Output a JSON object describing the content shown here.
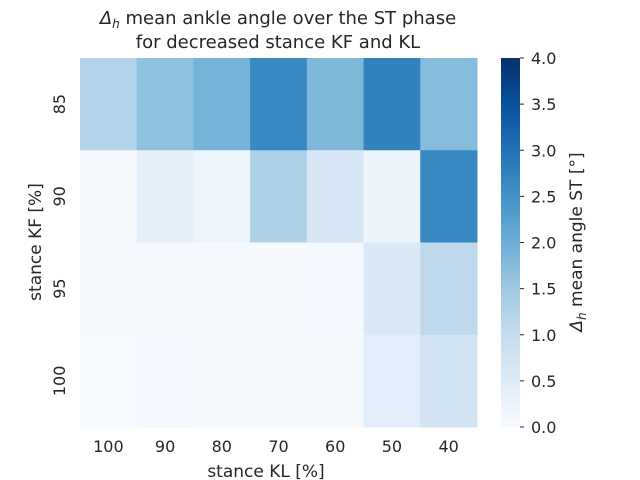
{
  "chart_data": {
    "type": "heatmap",
    "title_line1_prefix": "Δ",
    "title_line1_sub": "h",
    "title_line1_rest": " mean ankle angle over the ST phase",
    "title_line2": "for decreased stance KF and KL",
    "xlabel": "stance KL [%]",
    "ylabel": "stance KF [%]",
    "x_categories": [
      "100",
      "90",
      "80",
      "70",
      "60",
      "50",
      "40"
    ],
    "y_categories": [
      "85",
      "90",
      "95",
      "100"
    ],
    "values": [
      [
        1.25,
        1.65,
        1.9,
        2.65,
        1.8,
        2.75,
        1.75
      ],
      [
        0.05,
        0.4,
        0.2,
        1.3,
        0.65,
        0.25,
        2.65
      ],
      [
        0.05,
        0.05,
        0.05,
        0.05,
        0.1,
        0.6,
        1.1
      ],
      [
        0.0,
        0.1,
        0.05,
        0.05,
        0.05,
        0.45,
        0.75
      ]
    ],
    "colorbar": {
      "label_prefix": "Δ",
      "label_sub": "h",
      "label_rest": " mean angle ST [°]",
      "range": [
        0.0,
        4.0
      ],
      "ticks": [
        "0.0",
        "0.5",
        "1.0",
        "1.5",
        "2.0",
        "2.5",
        "3.0",
        "3.5",
        "4.0"
      ],
      "colormap": "Blues",
      "color_low": "#f7fbff",
      "color_high": "#08306b"
    },
    "grid": false
  }
}
